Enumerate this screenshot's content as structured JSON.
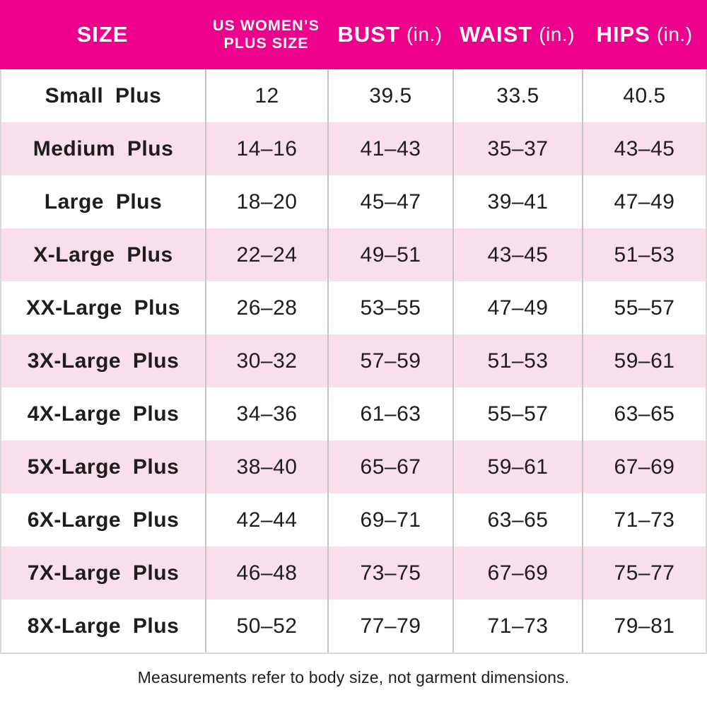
{
  "colors": {
    "header_bg": "#ec008c",
    "row_alt_bg": "#f9dfeb",
    "divider": "#c4c4c4",
    "outer_border": "#d8d8d8",
    "text": "#1d1d1d"
  },
  "header": {
    "col1": "SIZE",
    "col2_line1": "US WOMEN’S",
    "col2_line2": "PLUS SIZE",
    "col3_label": "BUST",
    "col3_unit": "(in.)",
    "col4_label": "WAIST",
    "col4_unit": "(in.)",
    "col5_label": "HIPS",
    "col5_unit": "(in.)"
  },
  "footer": {
    "note": "Measurements refer to body size, not garment dimensions."
  },
  "chart_data": {
    "type": "table",
    "title": "Plus size chart",
    "columns": [
      "SIZE",
      "US WOMEN’S PLUS SIZE",
      "BUST (in.)",
      "WAIST (in.)",
      "HIPS (in.)"
    ],
    "rows": [
      [
        "Small Plus",
        "12",
        "39.5",
        "33.5",
        "40.5"
      ],
      [
        "Medium Plus",
        "14–16",
        "41–43",
        "35–37",
        "43–45"
      ],
      [
        "Large Plus",
        "18–20",
        "45–47",
        "39–41",
        "47–49"
      ],
      [
        "X-Large Plus",
        "22–24",
        "49–51",
        "43–45",
        "51–53"
      ],
      [
        "XX-Large Plus",
        "26–28",
        "53–55",
        "47–49",
        "55–57"
      ],
      [
        "3X-Large Plus",
        "30–32",
        "57–59",
        "51–53",
        "59–61"
      ],
      [
        "4X-Large Plus",
        "34–36",
        "61–63",
        "55–57",
        "63–65"
      ],
      [
        "5X-Large Plus",
        "38–40",
        "65–67",
        "59–61",
        "67–69"
      ],
      [
        "6X-Large Plus",
        "42–44",
        "69–71",
        "63–65",
        "71–73"
      ],
      [
        "7X-Large Plus",
        "46–48",
        "73–75",
        "67–69",
        "75–77"
      ],
      [
        "8X-Large Plus",
        "50–52",
        "77–79",
        "71–73",
        "79–81"
      ]
    ],
    "row_striping": "odd rows white, even rows pale pink",
    "footnote": "Measurements refer to body size, not garment dimensions."
  }
}
